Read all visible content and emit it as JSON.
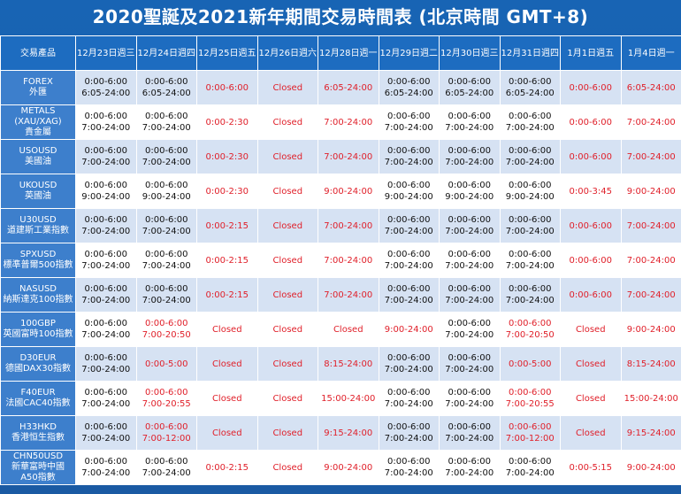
{
  "title": "2020聖誕及2021新年期間交易時間表 (北京時間 GMT+8)",
  "header": {
    "product": "交易產品",
    "dates": [
      "12月23日週三",
      "12月24日週四",
      "12月25日週五",
      "12月26日週六",
      "12月28日週一",
      "12月29日週二",
      "12月30日週三",
      "12月31日週四",
      "1月1日週五",
      "1月4日週一"
    ]
  },
  "rows": [
    {
      "label": [
        "FOREX",
        "外匯"
      ],
      "cells": [
        {
          "t": [
            "0:00-6:00",
            "6:05-24:00"
          ],
          "r": false
        },
        {
          "t": [
            "0:00-6:00",
            "6:05-24:00"
          ],
          "r": false
        },
        {
          "t": [
            "0:00-6:00"
          ],
          "r": true
        },
        {
          "t": [
            "Closed"
          ],
          "r": true
        },
        {
          "t": [
            "6:05-24:00"
          ],
          "r": true
        },
        {
          "t": [
            "0:00-6:00",
            "6:05-24:00"
          ],
          "r": false
        },
        {
          "t": [
            "0:00-6:00",
            "6:05-24:00"
          ],
          "r": false
        },
        {
          "t": [
            "0:00-6:00",
            "6:05-24:00"
          ],
          "r": false
        },
        {
          "t": [
            "0:00-6:00"
          ],
          "r": true
        },
        {
          "t": [
            "6:05-24:00"
          ],
          "r": true
        }
      ]
    },
    {
      "label": [
        "METALS",
        "(XAU/XAG)",
        "貴金屬"
      ],
      "cells": [
        {
          "t": [
            "0:00-6:00",
            "7:00-24:00"
          ],
          "r": false
        },
        {
          "t": [
            "0:00-6:00",
            "7:00-24:00"
          ],
          "r": false
        },
        {
          "t": [
            "0:00-2:30"
          ],
          "r": true
        },
        {
          "t": [
            "Closed"
          ],
          "r": true
        },
        {
          "t": [
            "7:00-24:00"
          ],
          "r": true
        },
        {
          "t": [
            "0:00-6:00",
            "7:00-24:00"
          ],
          "r": false
        },
        {
          "t": [
            "0:00-6:00",
            "7:00-24:00"
          ],
          "r": false
        },
        {
          "t": [
            "0:00-6:00",
            "7:00-24:00"
          ],
          "r": false
        },
        {
          "t": [
            "0:00-6:00"
          ],
          "r": true
        },
        {
          "t": [
            "7:00-24:00"
          ],
          "r": true
        }
      ]
    },
    {
      "label": [
        "USOUSD",
        "美國油"
      ],
      "cells": [
        {
          "t": [
            "0:00-6:00",
            "7:00-24:00"
          ],
          "r": false
        },
        {
          "t": [
            "0:00-6:00",
            "7:00-24:00"
          ],
          "r": false
        },
        {
          "t": [
            "0:00-2:30"
          ],
          "r": true
        },
        {
          "t": [
            "Closed"
          ],
          "r": true
        },
        {
          "t": [
            "7:00-24:00"
          ],
          "r": true
        },
        {
          "t": [
            "0:00-6:00",
            "7:00-24:00"
          ],
          "r": false
        },
        {
          "t": [
            "0:00-6:00",
            "7:00-24:00"
          ],
          "r": false
        },
        {
          "t": [
            "0:00-6:00",
            "7:00-24:00"
          ],
          "r": false
        },
        {
          "t": [
            "0:00-6:00"
          ],
          "r": true
        },
        {
          "t": [
            "7:00-24:00"
          ],
          "r": true
        }
      ]
    },
    {
      "label": [
        "UKOUSD",
        "英國油"
      ],
      "cells": [
        {
          "t": [
            "0:00-6:00",
            "9:00-24:00"
          ],
          "r": false
        },
        {
          "t": [
            "0:00-6:00",
            "9:00-24:00"
          ],
          "r": false
        },
        {
          "t": [
            "0:00-2:30"
          ],
          "r": true
        },
        {
          "t": [
            "Closed"
          ],
          "r": true
        },
        {
          "t": [
            "9:00-24:00"
          ],
          "r": true
        },
        {
          "t": [
            "0:00-6:00",
            "9:00-24:00"
          ],
          "r": false
        },
        {
          "t": [
            "0:00-6:00",
            "9:00-24:00"
          ],
          "r": false
        },
        {
          "t": [
            "0:00-6:00",
            "9:00-24:00"
          ],
          "r": false
        },
        {
          "t": [
            "0:00-3:45"
          ],
          "r": true
        },
        {
          "t": [
            "9:00-24:00"
          ],
          "r": true
        }
      ]
    },
    {
      "label": [
        "U30USD",
        "道建斯工業指數"
      ],
      "cells": [
        {
          "t": [
            "0:00-6:00",
            "7:00-24:00"
          ],
          "r": false
        },
        {
          "t": [
            "0:00-6:00",
            "7:00-24:00"
          ],
          "r": false
        },
        {
          "t": [
            "0:00-2:15"
          ],
          "r": true
        },
        {
          "t": [
            "Closed"
          ],
          "r": true
        },
        {
          "t": [
            "7:00-24:00"
          ],
          "r": true
        },
        {
          "t": [
            "0:00-6:00",
            "7:00-24:00"
          ],
          "r": false
        },
        {
          "t": [
            "0:00-6:00",
            "7:00-24:00"
          ],
          "r": false
        },
        {
          "t": [
            "0:00-6:00",
            "7:00-24:00"
          ],
          "r": false
        },
        {
          "t": [
            "0:00-6:00"
          ],
          "r": true
        },
        {
          "t": [
            "7:00-24:00"
          ],
          "r": true
        }
      ]
    },
    {
      "label": [
        "SPXUSD",
        "標準普爾500指數"
      ],
      "cells": [
        {
          "t": [
            "0:00-6:00",
            "7:00-24:00"
          ],
          "r": false
        },
        {
          "t": [
            "0:00-6:00",
            "7:00-24:00"
          ],
          "r": false
        },
        {
          "t": [
            "0:00-2:15"
          ],
          "r": true
        },
        {
          "t": [
            "Closed"
          ],
          "r": true
        },
        {
          "t": [
            "7:00-24:00"
          ],
          "r": true
        },
        {
          "t": [
            "0:00-6:00",
            "7:00-24:00"
          ],
          "r": false
        },
        {
          "t": [
            "0:00-6:00",
            "7:00-24:00"
          ],
          "r": false
        },
        {
          "t": [
            "0:00-6:00",
            "7:00-24:00"
          ],
          "r": false
        },
        {
          "t": [
            "0:00-6:00"
          ],
          "r": true
        },
        {
          "t": [
            "7:00-24:00"
          ],
          "r": true
        }
      ]
    },
    {
      "label": [
        "NASUSD",
        "納斯達克100指數"
      ],
      "cells": [
        {
          "t": [
            "0:00-6:00",
            "7:00-24:00"
          ],
          "r": false
        },
        {
          "t": [
            "0:00-6:00",
            "7:00-24:00"
          ],
          "r": false
        },
        {
          "t": [
            "0:00-2:15"
          ],
          "r": true
        },
        {
          "t": [
            "Closed"
          ],
          "r": true
        },
        {
          "t": [
            "7:00-24:00"
          ],
          "r": true
        },
        {
          "t": [
            "0:00-6:00",
            "7:00-24:00"
          ],
          "r": false
        },
        {
          "t": [
            "0:00-6:00",
            "7:00-24:00"
          ],
          "r": false
        },
        {
          "t": [
            "0:00-6:00",
            "7:00-24:00"
          ],
          "r": false
        },
        {
          "t": [
            "0:00-6:00"
          ],
          "r": true
        },
        {
          "t": [
            "7:00-24:00"
          ],
          "r": true
        }
      ]
    },
    {
      "label": [
        "100GBP",
        "英國富時100指數"
      ],
      "cells": [
        {
          "t": [
            "0:00-6:00",
            "7:00-24:00"
          ],
          "r": false
        },
        {
          "t": [
            "0:00-6:00",
            "7:00-20:50"
          ],
          "r": true
        },
        {
          "t": [
            "Closed"
          ],
          "r": true
        },
        {
          "t": [
            "Closed"
          ],
          "r": true
        },
        {
          "t": [
            "Closed"
          ],
          "r": true
        },
        {
          "t": [
            "9:00-24:00"
          ],
          "r": true
        },
        {
          "t": [
            "0:00-6:00",
            "7:00-24:00"
          ],
          "r": false
        },
        {
          "t": [
            "0:00-6:00",
            "7:00-20:50"
          ],
          "r": true
        },
        {
          "t": [
            "Closed"
          ],
          "r": true
        },
        {
          "t": [
            "9:00-24:00"
          ],
          "r": true
        }
      ]
    },
    {
      "label": [
        "D30EUR",
        "德國DAX30指數"
      ],
      "cells": [
        {
          "t": [
            "0:00-6:00",
            "7:00-24:00"
          ],
          "r": false
        },
        {
          "t": [
            "0:00-5:00"
          ],
          "r": true
        },
        {
          "t": [
            "Closed"
          ],
          "r": true
        },
        {
          "t": [
            "Closed"
          ],
          "r": true
        },
        {
          "t": [
            "8:15-24:00"
          ],
          "r": true
        },
        {
          "t": [
            "0:00-6:00",
            "7:00-24:00"
          ],
          "r": false
        },
        {
          "t": [
            "0:00-6:00",
            "7:00-24:00"
          ],
          "r": false
        },
        {
          "t": [
            "0:00-5:00"
          ],
          "r": true
        },
        {
          "t": [
            "Closed"
          ],
          "r": true
        },
        {
          "t": [
            "8:15-24:00"
          ],
          "r": true
        }
      ]
    },
    {
      "label": [
        "F40EUR",
        "法國CAC40指數"
      ],
      "cells": [
        {
          "t": [
            "0:00-6:00",
            "7:00-24:00"
          ],
          "r": false
        },
        {
          "t": [
            "0:00-6:00",
            "7:00-20:55"
          ],
          "r": true
        },
        {
          "t": [
            "Closed"
          ],
          "r": true
        },
        {
          "t": [
            "Closed"
          ],
          "r": true
        },
        {
          "t": [
            "15:00-24:00"
          ],
          "r": true
        },
        {
          "t": [
            "0:00-6:00",
            "7:00-24:00"
          ],
          "r": false
        },
        {
          "t": [
            "0:00-6:00",
            "7:00-24:00"
          ],
          "r": false
        },
        {
          "t": [
            "0:00-6:00",
            "7:00-20:55"
          ],
          "r": true
        },
        {
          "t": [
            "Closed"
          ],
          "r": true
        },
        {
          "t": [
            "15:00-24:00"
          ],
          "r": true
        }
      ]
    },
    {
      "label": [
        "H33HKD",
        "香港恒生指數"
      ],
      "cells": [
        {
          "t": [
            "0:00-6:00",
            "7:00-24:00"
          ],
          "r": false
        },
        {
          "t": [
            "0:00-6:00",
            "7:00-12:00"
          ],
          "r": true
        },
        {
          "t": [
            "Closed"
          ],
          "r": true
        },
        {
          "t": [
            "Closed"
          ],
          "r": true
        },
        {
          "t": [
            "9:15-24:00"
          ],
          "r": true
        },
        {
          "t": [
            "0:00-6:00",
            "7:00-24:00"
          ],
          "r": false
        },
        {
          "t": [
            "0:00-6:00",
            "7:00-24:00"
          ],
          "r": false
        },
        {
          "t": [
            "0:00-6:00",
            "7:00-12:00"
          ],
          "r": true
        },
        {
          "t": [
            "Closed"
          ],
          "r": true
        },
        {
          "t": [
            "9:15-24:00"
          ],
          "r": true
        }
      ]
    },
    {
      "label": [
        "CHN50USD",
        "新華富時中國",
        "A50指數"
      ],
      "cells": [
        {
          "t": [
            "0:00-6:00",
            "7:00-24:00"
          ],
          "r": false
        },
        {
          "t": [
            "0:00-6:00",
            "7:00-24:00"
          ],
          "r": false
        },
        {
          "t": [
            "0:00-2:15"
          ],
          "r": true
        },
        {
          "t": [
            "Closed"
          ],
          "r": true
        },
        {
          "t": [
            "9:00-24:00"
          ],
          "r": true
        },
        {
          "t": [
            "0:00-6:00",
            "7:00-24:00"
          ],
          "r": false
        },
        {
          "t": [
            "0:00-6:00",
            "7:00-24:00"
          ],
          "r": false
        },
        {
          "t": [
            "0:00-6:00",
            "7:00-24:00"
          ],
          "r": false
        },
        {
          "t": [
            "0:00-5:15"
          ],
          "r": true
        },
        {
          "t": [
            "9:00-24:00"
          ],
          "r": true
        }
      ]
    }
  ]
}
